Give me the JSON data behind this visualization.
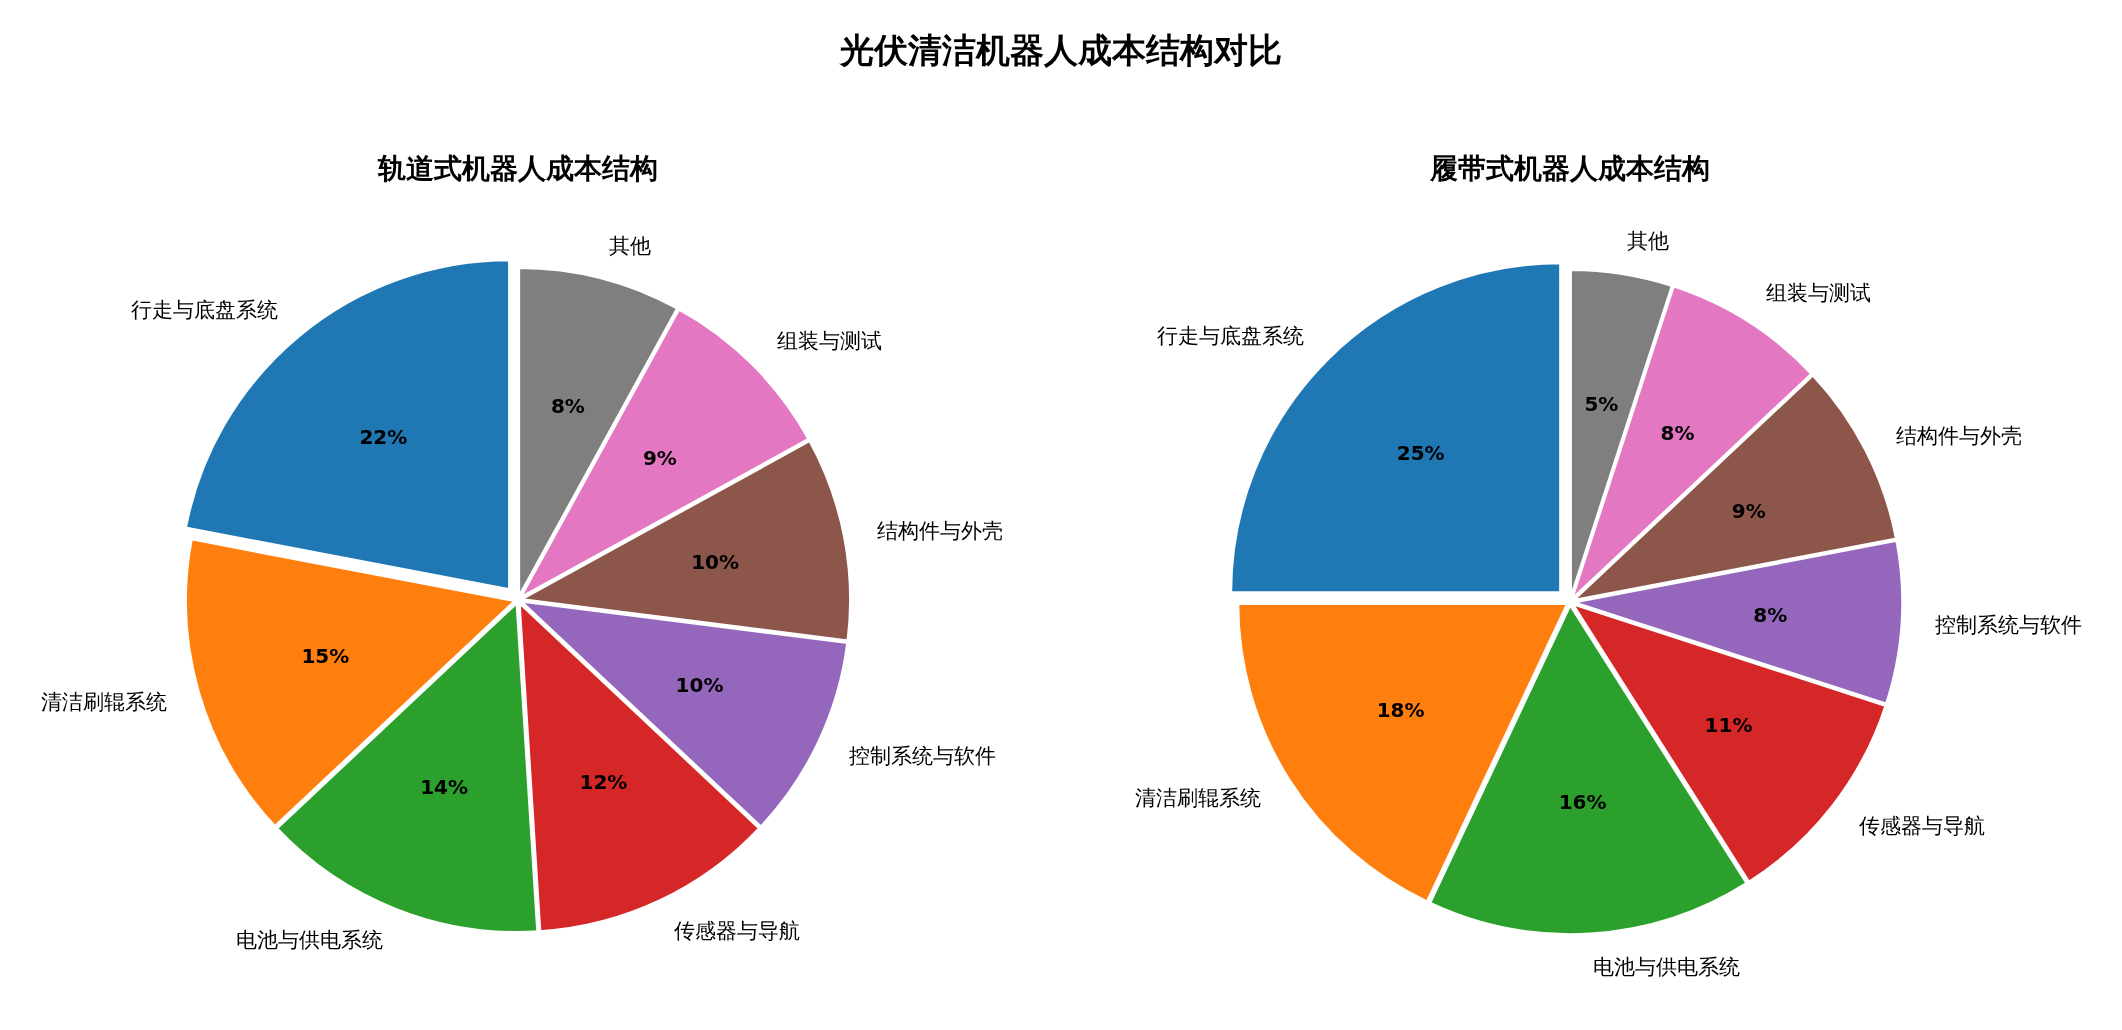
{
  "chart_data": [
    {
      "type": "pie",
      "title": "光伏清洁机器人成本结构对比",
      "subtitle": "轨道式机器人成本结构",
      "categories": [
        "行走与底盘系统",
        "清洁刷辊系统",
        "电池与供电系统",
        "传感器与导航",
        "控制系统与软件",
        "结构件与外壳",
        "组装与测试",
        "其他"
      ],
      "values": [
        22,
        15,
        14,
        12,
        10,
        10,
        9,
        8
      ],
      "value_labels": [
        "22%",
        "15%",
        "14%",
        "12%",
        "10%",
        "10%",
        "9%",
        "8%"
      ],
      "colors": [
        "#1f77b4",
        "#ff7f0e",
        "#2ca02c",
        "#d62728",
        "#9467bd",
        "#8c564b",
        "#e377c2",
        "#7f7f7f"
      ]
    },
    {
      "type": "pie",
      "subtitle": "履带式机器人成本结构",
      "categories": [
        "行走与底盘系统",
        "清洁刷辊系统",
        "电池与供电系统",
        "传感器与导航",
        "控制系统与软件",
        "结构件与外壳",
        "组装与测试",
        "其他"
      ],
      "values": [
        25,
        18,
        16,
        11,
        8,
        9,
        8,
        5
      ],
      "value_labels": [
        "25%",
        "18%",
        "16%",
        "11%",
        "8%",
        "9%",
        "8%",
        "5%"
      ],
      "colors": [
        "#1f77b4",
        "#ff7f0e",
        "#2ca02c",
        "#d62728",
        "#9467bd",
        "#8c564b",
        "#e377c2",
        "#7f7f7f"
      ]
    }
  ]
}
